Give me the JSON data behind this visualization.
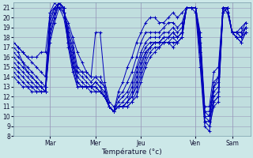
{
  "xlabel": "Température (°c)",
  "bg_color": "#cce8e8",
  "plot_bg_color": "#c0dede",
  "line_color": "#0000bb",
  "ylim": [
    8,
    21.5
  ],
  "xlim_min": 0,
  "xlim_max": 52,
  "grid_color": "#9999bb",
  "day_tick_positions": [
    8,
    18,
    28,
    40,
    48
  ],
  "day_tick_labels": [
    "Mar",
    "Mer",
    "Jeu",
    "Ven",
    "Sam"
  ],
  "series": [
    [
      17.5,
      17.0,
      16.5,
      16.0,
      15.5,
      15.0,
      14.5,
      14.0,
      20.5,
      21.0,
      21.0,
      20.5,
      19.5,
      18.0,
      16.5,
      15.5,
      14.5,
      14.0,
      18.5,
      18.5,
      13.5,
      11.5,
      11.0,
      11.0,
      11.0,
      11.0,
      11.5,
      12.0,
      13.5,
      15.0,
      16.0,
      16.5,
      17.0,
      17.5,
      17.5,
      17.0,
      17.5,
      18.0,
      21.0,
      21.0,
      20.5,
      15.0,
      9.0,
      8.5,
      11.5,
      12.0,
      21.0,
      21.0,
      18.5,
      18.0,
      17.5,
      18.5
    ],
    [
      17.0,
      16.5,
      15.5,
      15.0,
      14.5,
      14.0,
      13.5,
      13.0,
      20.0,
      21.0,
      21.5,
      20.5,
      19.0,
      17.5,
      15.0,
      14.5,
      14.0,
      13.5,
      14.0,
      14.0,
      13.0,
      11.0,
      10.5,
      11.0,
      11.0,
      11.0,
      11.5,
      12.5,
      14.0,
      15.5,
      16.5,
      17.0,
      17.0,
      17.5,
      17.5,
      17.5,
      17.5,
      18.0,
      21.0,
      21.0,
      21.0,
      16.0,
      9.5,
      9.0,
      11.0,
      11.5,
      20.5,
      21.0,
      18.5,
      18.0,
      17.5,
      18.5
    ],
    [
      16.5,
      16.0,
      15.5,
      14.5,
      14.0,
      13.5,
      13.0,
      13.0,
      19.5,
      21.0,
      21.5,
      21.0,
      18.5,
      17.0,
      14.5,
      14.0,
      13.5,
      13.0,
      13.5,
      13.0,
      12.5,
      11.0,
      10.5,
      11.0,
      11.0,
      11.5,
      12.0,
      13.0,
      14.5,
      16.0,
      17.0,
      17.5,
      17.5,
      17.5,
      17.5,
      18.0,
      17.5,
      18.0,
      21.0,
      21.0,
      21.0,
      16.5,
      9.5,
      9.5,
      11.5,
      12.0,
      20.5,
      21.0,
      18.5,
      18.0,
      18.0,
      19.0
    ],
    [
      16.0,
      15.5,
      15.0,
      14.5,
      14.0,
      13.5,
      13.0,
      12.5,
      19.0,
      20.5,
      21.5,
      21.0,
      18.5,
      16.5,
      14.0,
      13.5,
      13.0,
      13.0,
      13.5,
      13.0,
      12.0,
      11.0,
      10.5,
      11.0,
      11.0,
      11.5,
      12.0,
      13.5,
      15.0,
      16.5,
      17.0,
      17.5,
      17.5,
      17.5,
      18.0,
      18.0,
      18.0,
      18.5,
      21.0,
      21.0,
      21.0,
      16.5,
      10.0,
      9.5,
      12.0,
      12.5,
      20.5,
      21.0,
      18.5,
      18.0,
      18.0,
      19.0
    ],
    [
      15.5,
      15.0,
      14.5,
      14.0,
      13.5,
      13.0,
      13.0,
      12.5,
      19.0,
      20.5,
      21.5,
      21.0,
      18.0,
      16.0,
      13.5,
      13.0,
      13.0,
      13.0,
      13.0,
      12.5,
      12.0,
      11.0,
      10.5,
      11.0,
      11.0,
      11.5,
      12.5,
      14.0,
      15.5,
      16.5,
      17.0,
      17.5,
      17.5,
      18.0,
      18.0,
      18.5,
      18.0,
      18.5,
      21.0,
      21.0,
      21.0,
      17.0,
      10.0,
      10.0,
      12.5,
      13.0,
      20.5,
      21.0,
      18.5,
      18.5,
      18.0,
      19.0
    ],
    [
      15.0,
      14.5,
      14.0,
      13.5,
      13.0,
      13.0,
      12.5,
      12.5,
      18.5,
      20.0,
      21.5,
      21.0,
      18.0,
      15.5,
      13.5,
      13.0,
      13.0,
      13.0,
      13.0,
      12.5,
      12.0,
      11.0,
      10.5,
      11.0,
      11.5,
      12.0,
      13.0,
      14.5,
      16.0,
      17.0,
      17.5,
      17.5,
      17.5,
      18.0,
      18.0,
      18.5,
      18.0,
      18.5,
      21.0,
      21.0,
      21.0,
      17.5,
      10.5,
      10.0,
      13.0,
      13.5,
      21.0,
      21.0,
      18.5,
      18.5,
      18.5,
      19.0
    ],
    [
      14.5,
      14.0,
      13.5,
      13.0,
      13.0,
      12.5,
      12.5,
      12.5,
      18.0,
      20.0,
      21.5,
      21.0,
      17.5,
      15.0,
      13.0,
      13.0,
      13.0,
      13.0,
      12.5,
      12.5,
      12.0,
      11.0,
      10.5,
      11.5,
      12.0,
      12.5,
      13.5,
      15.0,
      16.5,
      17.5,
      18.0,
      18.0,
      18.0,
      18.5,
      18.5,
      19.0,
      18.5,
      19.0,
      21.0,
      21.0,
      21.0,
      18.0,
      10.5,
      10.5,
      13.5,
      14.0,
      21.0,
      21.0,
      18.5,
      18.5,
      18.5,
      19.5
    ],
    [
      14.0,
      13.5,
      13.0,
      13.0,
      12.5,
      12.5,
      12.5,
      12.5,
      17.5,
      19.5,
      21.0,
      21.0,
      17.0,
      14.5,
      13.0,
      13.0,
      13.0,
      12.5,
      12.5,
      12.5,
      12.0,
      11.0,
      10.5,
      12.0,
      12.5,
      13.5,
      14.5,
      16.0,
      17.5,
      18.5,
      18.5,
      18.5,
      18.5,
      19.0,
      19.5,
      19.5,
      19.0,
      19.5,
      21.0,
      21.0,
      21.0,
      18.5,
      11.0,
      11.0,
      14.5,
      15.0,
      21.0,
      20.5,
      18.5,
      18.5,
      19.0,
      19.5
    ],
    [
      17.5,
      17.0,
      16.5,
      16.0,
      16.0,
      16.0,
      16.5,
      16.5,
      20.5,
      21.5,
      21.0,
      20.0,
      17.5,
      15.0,
      14.5,
      14.5,
      14.5,
      14.0,
      14.0,
      13.5,
      13.0,
      11.0,
      10.5,
      12.5,
      13.5,
      15.0,
      16.0,
      17.5,
      18.5,
      19.5,
      20.0,
      20.0,
      19.5,
      19.5,
      20.0,
      20.5,
      20.0,
      20.5,
      21.0,
      21.0,
      21.0,
      18.0,
      10.0,
      10.0,
      13.0,
      14.0,
      21.0,
      20.5,
      18.5,
      18.5,
      18.0,
      18.5
    ]
  ]
}
